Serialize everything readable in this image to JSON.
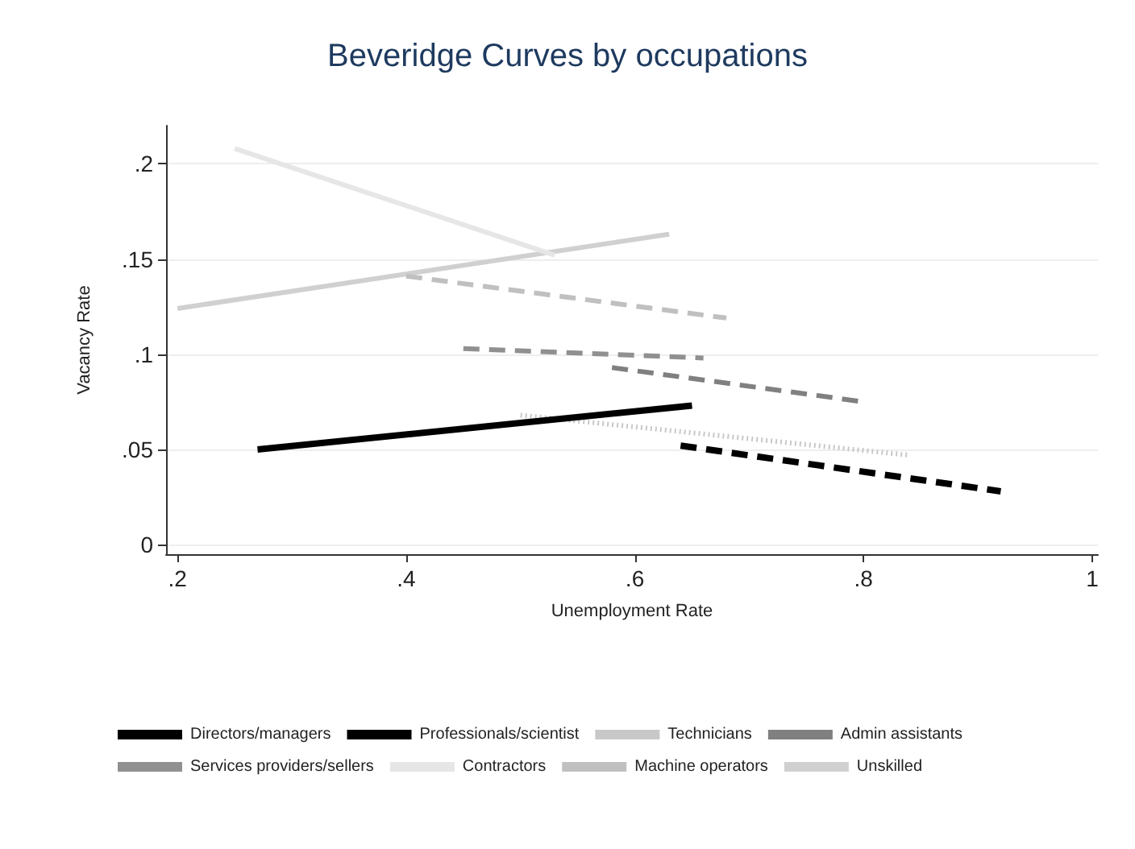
{
  "chart_data": {
    "type": "line",
    "title": "Beveridge Curves by occupations",
    "xlabel": "Unemployment Rate",
    "ylabel": "Vacancy Rate",
    "xlim": [
      0.19,
      1.005
    ],
    "xticks": [
      {
        "value": 0.2,
        "label": ".2"
      },
      {
        "value": 0.4,
        "label": ".4"
      },
      {
        "value": 0.6,
        "label": ".6"
      },
      {
        "value": 0.8,
        "label": ".8"
      },
      1
    ],
    "ylim": [
      -0.005,
      0.22
    ],
    "yticks": [
      0,
      {
        "value": 0.05,
        "label": ".05"
      },
      {
        "value": 0.1,
        "label": ".1"
      },
      {
        "value": 0.15,
        "label": ".15"
      },
      {
        "value": 0.2,
        "label": ".2"
      }
    ],
    "grid": "y",
    "legend": "bottom",
    "marker": "none",
    "series": [
      {
        "name": "Directors/managers",
        "color": "#000000",
        "line_style": "solid",
        "x": [
          0.27,
          0.65
        ],
        "values": [
          0.05,
          0.073
        ]
      },
      {
        "name": "Professionals/scientist",
        "color": "#000000",
        "line_style": "dashed",
        "x": [
          0.64,
          0.92
        ],
        "values": [
          0.052,
          0.028
        ]
      },
      {
        "name": "Technicians",
        "color": "#c8c8c8",
        "line_style": "dotted",
        "x": [
          0.5,
          0.84
        ],
        "values": [
          0.068,
          0.047
        ]
      },
      {
        "name": "Admin assistants",
        "color": "#808080",
        "line_style": "dashed",
        "x": [
          0.58,
          0.8
        ],
        "values": [
          0.093,
          0.075
        ]
      },
      {
        "name": "Services providers/sellers",
        "color": "#909090",
        "line_style": "dashed",
        "x": [
          0.45,
          0.66
        ],
        "values": [
          0.103,
          0.098
        ]
      },
      {
        "name": "Contractors",
        "color": "#e6e6e6",
        "line_style": "solid",
        "x": [
          0.25,
          0.53
        ],
        "values": [
          0.208,
          0.152
        ]
      },
      {
        "name": "Machine operators",
        "color": "#c0c0c0",
        "line_style": "dashed",
        "x": [
          0.4,
          0.68
        ],
        "values": [
          0.141,
          0.119
        ]
      },
      {
        "name": "Unskilled",
        "color": "#d0d0d0",
        "line_style": "solid",
        "x": [
          0.2,
          0.63
        ],
        "values": [
          0.124,
          0.163
        ]
      }
    ]
  }
}
